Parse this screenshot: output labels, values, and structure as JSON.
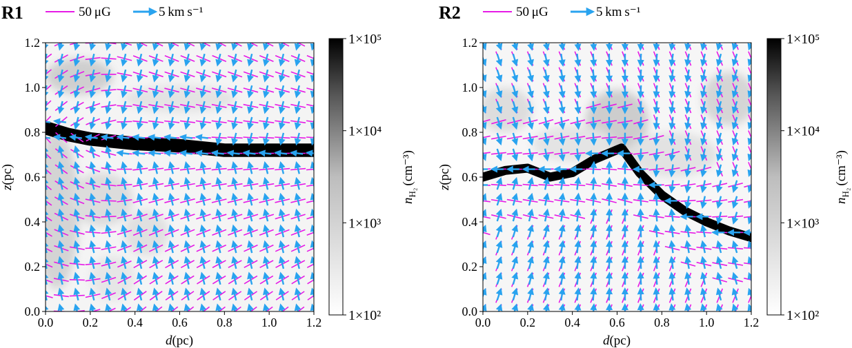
{
  "chart_data": [
    {
      "type": "heatmap",
      "panel_label": "R1",
      "legend": {
        "bfield_label": "50 μG",
        "velocity_label": "5 km s⁻¹",
        "bfield_color": "#e61ae6",
        "velocity_color": "#29a3ef"
      },
      "xlabel_italic": "d",
      "xlabel_unit": "(pc)",
      "ylabel_italic": "z",
      "ylabel_unit": "(pc)",
      "xlim": [
        0.0,
        1.2
      ],
      "ylim": [
        0.0,
        1.2
      ],
      "xticks": [
        "0.0",
        "0.2",
        "0.4",
        "0.6",
        "0.8",
        "1.0",
        "1.2"
      ],
      "yticks": [
        "0.0",
        "0.2",
        "0.4",
        "0.6",
        "0.8",
        "1.0",
        "1.2"
      ],
      "filament": {
        "d": [
          0.0,
          0.1,
          0.2,
          0.4,
          0.6,
          0.8,
          1.0,
          1.2
        ],
        "z": [
          0.82,
          0.79,
          0.77,
          0.75,
          0.74,
          0.72,
          0.72,
          0.72
        ],
        "width": 0.06
      },
      "colorbar": {
        "label_main": "n",
        "label_sub": "H₂",
        "label_unit": "(cm⁻³)",
        "scale": "log",
        "ticks": [
          "1×10²",
          "1×10³",
          "1×10⁴",
          "1×10⁵"
        ],
        "range": [
          100,
          100000
        ]
      }
    },
    {
      "type": "heatmap",
      "panel_label": "R2",
      "legend": {
        "bfield_label": "50 μG",
        "velocity_label": "5 km s⁻¹",
        "bfield_color": "#e61ae6",
        "velocity_color": "#29a3ef"
      },
      "xlabel_italic": "d",
      "xlabel_unit": "(pc)",
      "ylabel_italic": "z",
      "ylabel_unit": "(pc)",
      "xlim": [
        0.0,
        1.2
      ],
      "ylim": [
        0.0,
        1.2
      ],
      "xticks": [
        "0.0",
        "0.2",
        "0.4",
        "0.6",
        "0.8",
        "1.0",
        "1.2"
      ],
      "yticks": [
        "0.0",
        "0.2",
        "0.4",
        "0.6",
        "0.8",
        "1.0",
        "1.2"
      ],
      "filament": {
        "d": [
          0.0,
          0.1,
          0.2,
          0.3,
          0.4,
          0.5,
          0.62,
          0.7,
          0.8,
          0.9,
          1.0,
          1.1,
          1.2
        ],
        "z": [
          0.6,
          0.63,
          0.64,
          0.6,
          0.62,
          0.68,
          0.73,
          0.62,
          0.52,
          0.45,
          0.4,
          0.36,
          0.33
        ],
        "width": 0.04
      },
      "colorbar": {
        "label_main": "n",
        "label_sub": "H₂",
        "label_unit": "(cm⁻³)",
        "scale": "log",
        "ticks": [
          "1×10²",
          "1×10³",
          "1×10⁴",
          "1×10⁵"
        ],
        "range": [
          100,
          100000
        ]
      }
    }
  ]
}
